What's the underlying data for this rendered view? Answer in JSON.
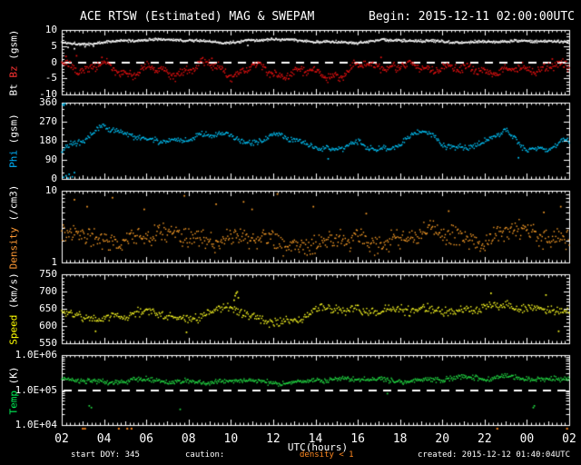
{
  "header": {
    "title": "ACE RTSW (Estimated) MAG & SWEPAM",
    "begin": "Begin: 2015-12-11 02:00:00UTC"
  },
  "footer": {
    "start_doy": "start DOY: 345",
    "caution_label": "caution:",
    "caution_value": "density < 1",
    "caution_color": "#ff8820",
    "created": "created: 2015-12-12 01:40:04UTC"
  },
  "colors": {
    "background": "#000000",
    "frame": "#ffffff",
    "bt": "#ffffff",
    "bz": "#ee1111",
    "phi": "#00c8ff",
    "density": "#ffa028",
    "speed": "#ffff22",
    "temp": "#22dd44"
  },
  "chart_data": {
    "type": "scatter",
    "title": "ACE RTSW (Estimated) MAG & SWEPAM",
    "x_axis": {
      "label": "UTC(hours)",
      "start_hour": 2,
      "end_hour": 26,
      "tick_hours": [
        2,
        4,
        6,
        8,
        10,
        12,
        14,
        16,
        18,
        20,
        22,
        24,
        26
      ],
      "tick_labels": [
        "02",
        "04",
        "06",
        "08",
        "10",
        "12",
        "14",
        "16",
        "18",
        "20",
        "22",
        "00",
        "02"
      ]
    },
    "anchor_hours": [
      2,
      3,
      4,
      5,
      6,
      7,
      8,
      9,
      10,
      11,
      12,
      13,
      14,
      15,
      16,
      17,
      18,
      19,
      20,
      21,
      22,
      23,
      24,
      25,
      26
    ],
    "caution_marks_hours": [
      3.0,
      3.1,
      4.7,
      5.1,
      5.3,
      22.6,
      25.9
    ],
    "panels": [
      {
        "name": "bt-bz",
        "scale": "linear",
        "ymin": -10,
        "ymax": 10,
        "yticks": [
          10,
          5,
          0,
          -5,
          -10
        ],
        "ytick_labels": [
          "10",
          "5",
          "0",
          "-5",
          "-10"
        ],
        "minor_step": 1,
        "dashed_at": 0,
        "ylabel_parts": [
          {
            "text": "Bt ",
            "color": "#ffffff"
          },
          {
            "text": "Bz",
            "color": "#ff3333"
          },
          {
            "text": " (gsm)",
            "color": "#ffffff"
          }
        ],
        "series": [
          {
            "name": "Bt",
            "color": "#ffffff",
            "spread": 0.5,
            "anchors": [
              6.0,
              5.9,
              6.3,
              6.6,
              6.6,
              6.9,
              6.9,
              6.6,
              6.2,
              6.5,
              6.9,
              6.7,
              6.6,
              6.5,
              6.1,
              6.5,
              6.6,
              6.5,
              6.9,
              6.2,
              6.5,
              6.1,
              6.4,
              6.6,
              6.5
            ],
            "outliers": [
              [
                2.3,
                4.6
              ],
              [
                2.6,
                4.2
              ],
              [
                3.1,
                4.8
              ],
              [
                3.5,
                5.0
              ],
              [
                10.8,
                5.2
              ]
            ]
          },
          {
            "name": "Bz",
            "color": "#ee1111",
            "spread": 1.6,
            "anchors": [
              -0.5,
              -2.0,
              -1.5,
              -3.0,
              -2.0,
              -3.5,
              -2.0,
              -1.0,
              -3.0,
              -2.0,
              -3.0,
              -3.0,
              -3.5,
              -4.0,
              -2.0,
              -0.5,
              -1.5,
              -2.0,
              -1.0,
              -3.0,
              -2.0,
              -3.0,
              -2.0,
              -1.0,
              -2.0
            ],
            "outliers": [
              [
                2.2,
                1.8
              ],
              [
                2.7,
                2.0
              ],
              [
                3.9,
                1.5
              ],
              [
                9.1,
                1.2
              ],
              [
                17.1,
                1.5
              ],
              [
                25.2,
                1.0
              ]
            ]
          }
        ]
      },
      {
        "name": "phi",
        "scale": "linear",
        "ymin": 0,
        "ymax": 360,
        "yticks": [
          360,
          270,
          180,
          90,
          0
        ],
        "ytick_labels": [
          "360",
          "270",
          "180",
          "90",
          "0"
        ],
        "minor_step": 30,
        "dashed_at": null,
        "ylabel_parts": [
          {
            "text": "Phi",
            "color": "#00b4ff"
          },
          {
            "text": " (gsm)",
            "color": "#ffffff"
          }
        ],
        "series": [
          {
            "name": "Phi",
            "color": "#00c8ff",
            "spread": 16,
            "anchors": [
              120,
              180,
              265,
              205,
              180,
              188,
              190,
              200,
              215,
              170,
              200,
              185,
              160,
              130,
              165,
              148,
              158,
              225,
              170,
              152,
              162,
              228,
              150,
              135,
              175
            ],
            "outliers": [
              [
                2.05,
                352
              ],
              [
                2.1,
                347
              ],
              [
                2.15,
                355
              ],
              [
                2.08,
                8
              ],
              [
                2.2,
                15
              ],
              [
                2.35,
                22
              ],
              [
                2.5,
                10
              ],
              [
                2.6,
                30
              ],
              [
                2.3,
                4
              ],
              [
                14.6,
                95
              ],
              [
                23.6,
                100
              ]
            ]
          }
        ]
      },
      {
        "name": "density",
        "scale": "log",
        "ymin": 1,
        "ymax": 10,
        "yticks": [
          10,
          1
        ],
        "ytick_labels": [
          "10",
          "1"
        ],
        "dashed_at": null,
        "ylabel_parts": [
          {
            "text": "Density",
            "color": "#ff9933"
          },
          {
            "text": " (/cm3)",
            "color": "#ffffff"
          }
        ],
        "series": [
          {
            "name": "Density",
            "color": "#ffa028",
            "spread": 0.17,
            "anchors": [
              2.2,
              2.6,
              2.1,
              2.3,
              2.1,
              2.3,
              2.4,
              2.3,
              2.1,
              1.9,
              2.1,
              1.9,
              1.7,
              1.9,
              2.1,
              2.1,
              2.1,
              2.3,
              2.6,
              2.3,
              2.1,
              2.6,
              2.6,
              2.4,
              2.3
            ],
            "outliers": [
              [
                2.6,
                7.5
              ],
              [
                3.2,
                6.0
              ],
              [
                4.4,
                8.0
              ],
              [
                5.9,
                5.5
              ],
              [
                7.8,
                8.5
              ],
              [
                9.3,
                6.5
              ],
              [
                10.6,
                7.0
              ],
              [
                12.2,
                9.0
              ],
              [
                13.9,
                6.0
              ],
              [
                11.0,
                5.5
              ],
              [
                16.4,
                4.8
              ],
              [
                20.3,
                5.2
              ],
              [
                24.8,
                5.0
              ],
              [
                25.6,
                6.0
              ]
            ]
          }
        ]
      },
      {
        "name": "speed",
        "scale": "linear",
        "ymin": 550,
        "ymax": 750,
        "yticks": [
          750,
          700,
          650,
          600,
          550
        ],
        "ytick_labels": [
          "750",
          "700",
          "650",
          "600",
          "550"
        ],
        "minor_step": 10,
        "dashed_at": null,
        "ylabel_parts": [
          {
            "text": "Speed",
            "color": "#ffff00"
          },
          {
            "text": " (km/s)",
            "color": "#ffffff"
          }
        ],
        "series": [
          {
            "name": "Speed",
            "color": "#ffff22",
            "spread": 16,
            "anchors": [
              635,
              628,
              632,
              626,
              636,
              630,
              626,
              641,
              648,
              622,
              618,
              622,
              646,
              641,
              646,
              651,
              649,
              641,
              643,
              651,
              661,
              656,
              641,
              651,
              642
            ],
            "outliers": [
              [
                10.2,
                688
              ],
              [
                10.25,
                695
              ],
              [
                10.3,
                699
              ],
              [
                10.35,
                682
              ],
              [
                10.15,
                675
              ],
              [
                24.9,
                690
              ],
              [
                25.5,
                585
              ],
              [
                3.6,
                585
              ],
              [
                7.9,
                582
              ],
              [
                22.3,
                695
              ]
            ]
          }
        ]
      },
      {
        "name": "temp",
        "scale": "log",
        "ymin": 10000,
        "ymax": 1000000,
        "yticks": [
          1000000,
          100000,
          10000
        ],
        "ytick_labels": [
          "1.0E+06",
          "1.0E+05",
          "1.0E+04"
        ],
        "dashed_at": 100000,
        "ylabel_parts": [
          {
            "text": "Temp",
            "color": "#00ee55"
          },
          {
            "text": " (K)",
            "color": "#ffffff"
          }
        ],
        "series": [
          {
            "name": "Temp",
            "color": "#22dd44",
            "spread": 0.09,
            "anchors_are_log10": true,
            "anchors": [
              5.35,
              5.3,
              5.22,
              5.2,
              5.3,
              5.24,
              5.3,
              5.2,
              5.25,
              5.24,
              5.2,
              5.25,
              5.3,
              5.3,
              5.28,
              5.3,
              5.25,
              5.3,
              5.3,
              5.35,
              5.3,
              5.42,
              5.35,
              5.3,
              5.3
            ],
            "outliers": [
              [
                3.3,
                4.55
              ],
              [
                3.4,
                4.5
              ],
              [
                7.6,
                4.45
              ],
              [
                17.4,
                4.9
              ],
              [
                24.3,
                4.5
              ],
              [
                24.35,
                4.55
              ]
            ]
          }
        ]
      }
    ]
  }
}
